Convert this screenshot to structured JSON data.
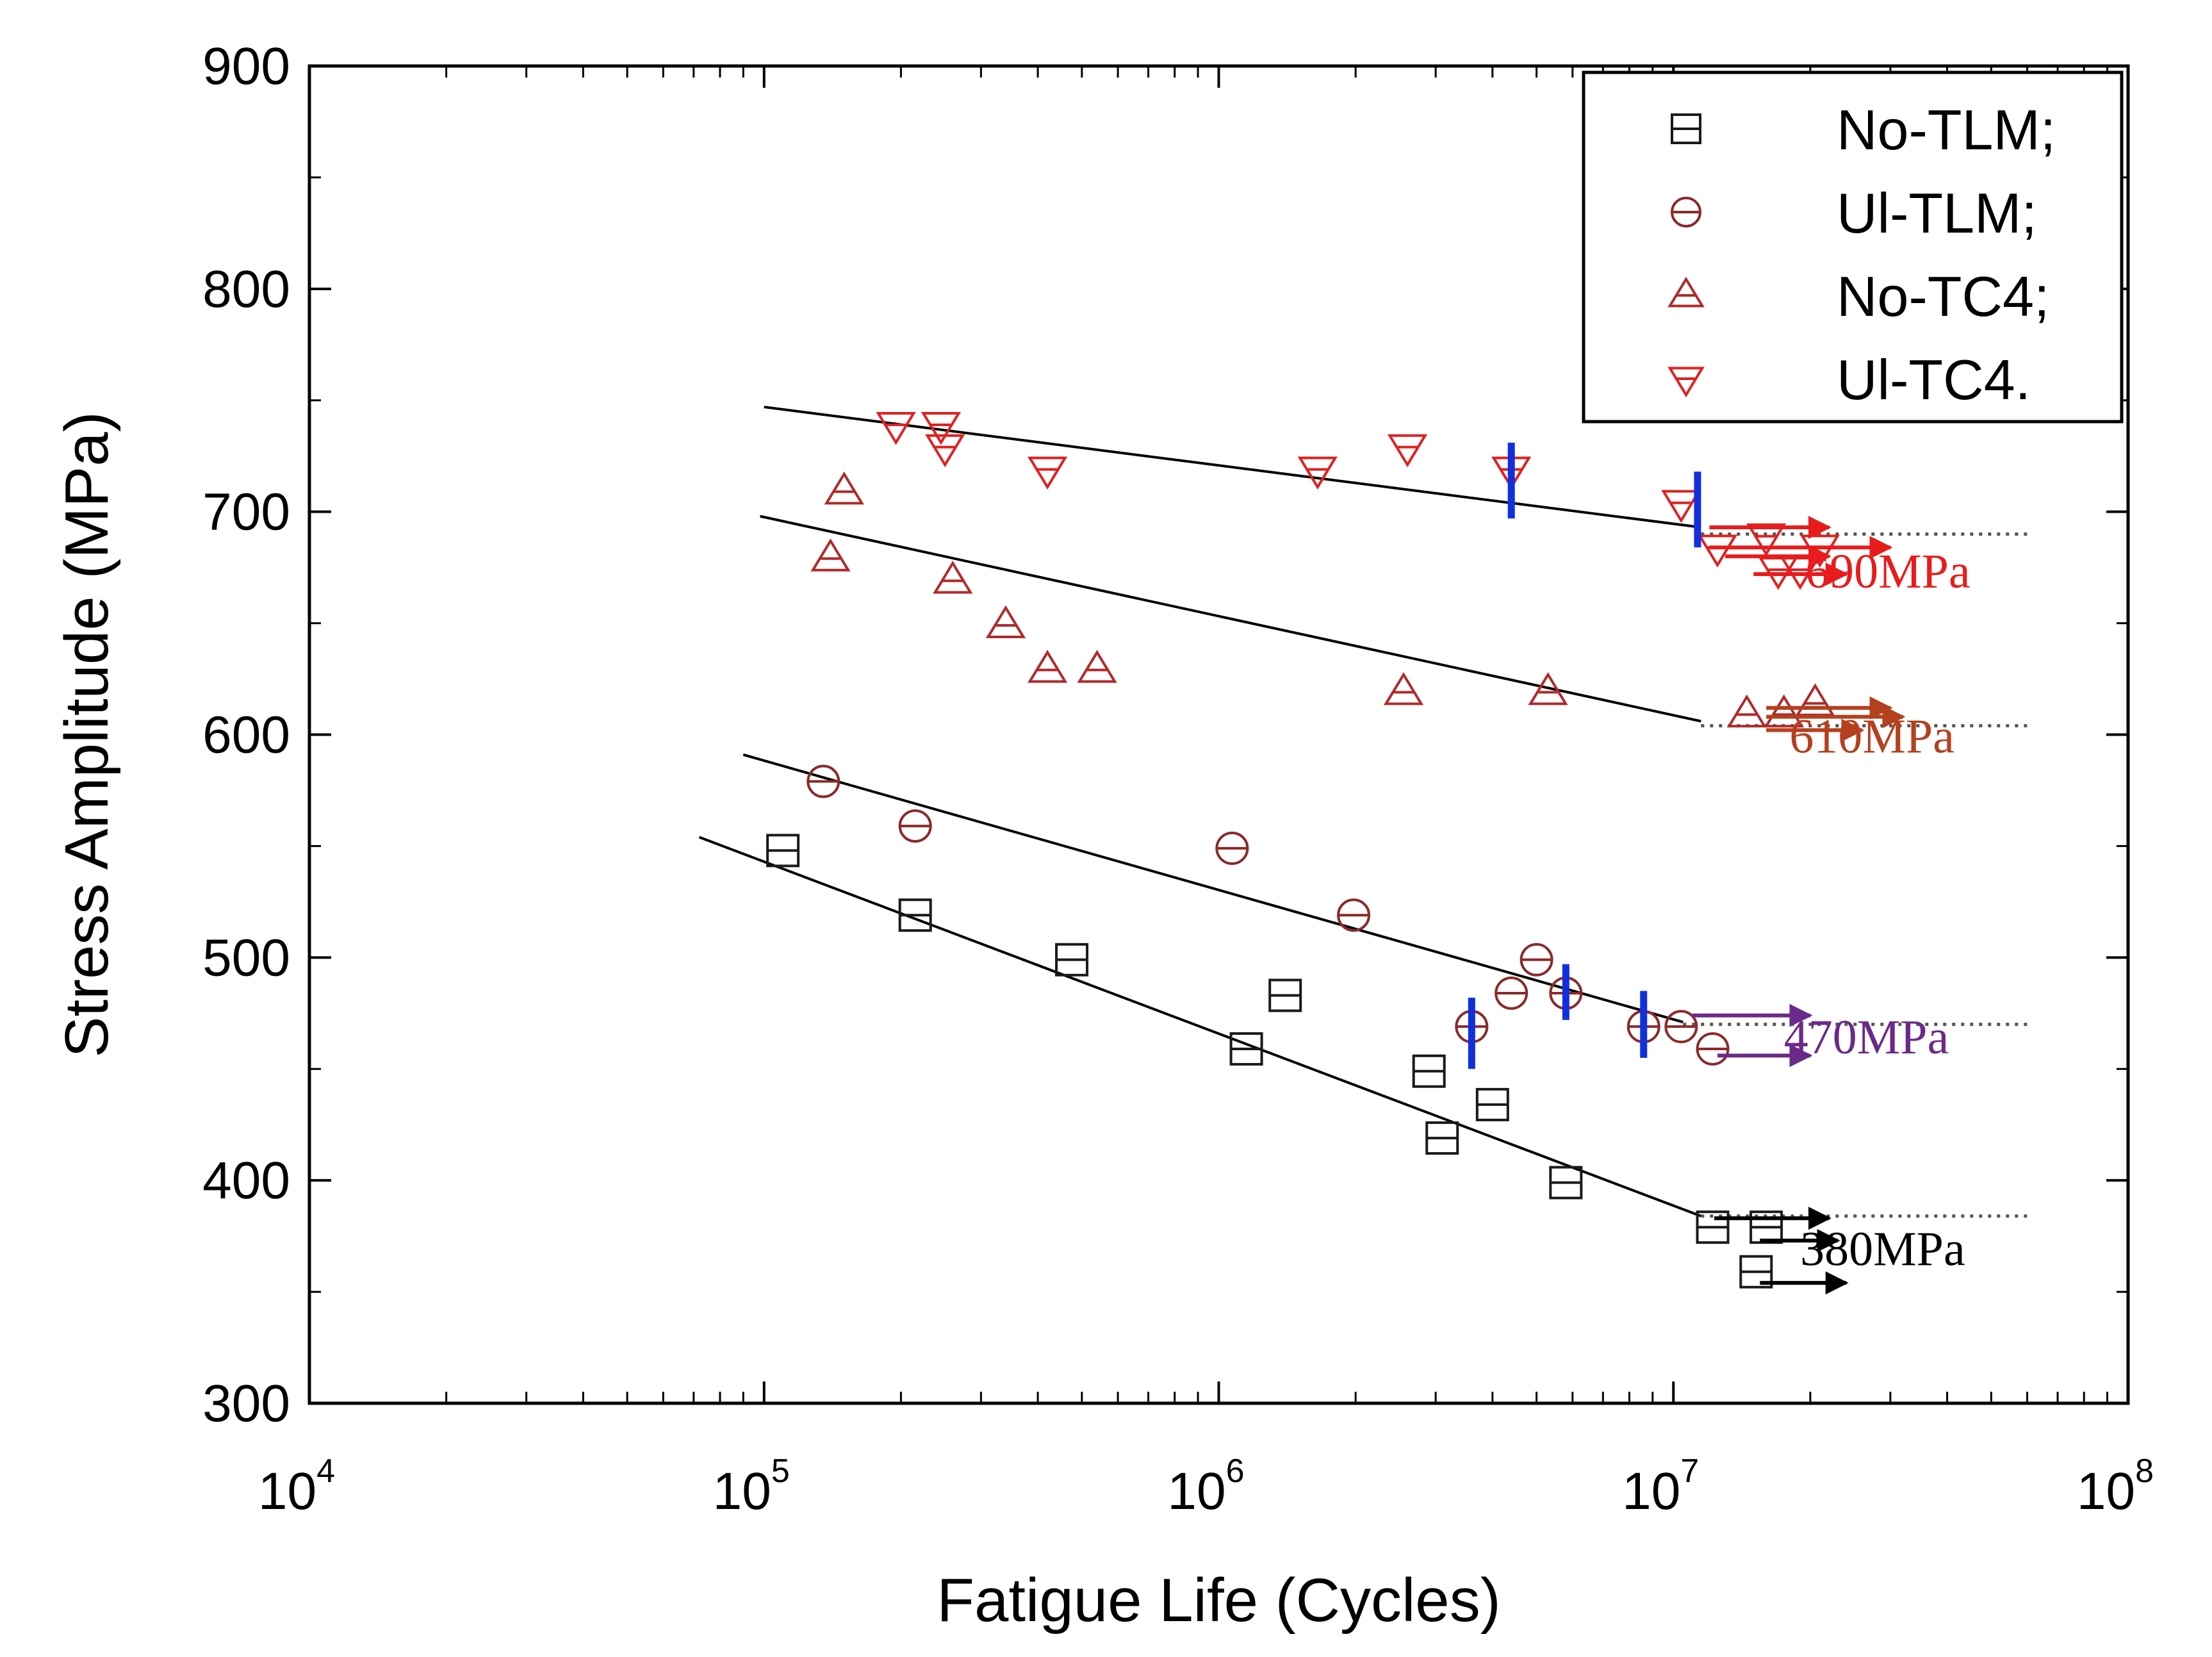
{
  "chart_data": {
    "type": "scatter",
    "title": "",
    "xlabel": "Fatigue Life (Cycles)",
    "ylabel": "Stress Amplitude (MPa)",
    "x_scale": "log",
    "xlim": [
      10000,
      100000000
    ],
    "ylim": [
      300,
      900
    ],
    "x_ticks": [
      {
        "value": 10000,
        "base": "10",
        "exp": "4"
      },
      {
        "value": 100000,
        "base": "10",
        "exp": "5"
      },
      {
        "value": 1000000,
        "base": "10",
        "exp": "6"
      },
      {
        "value": 10000000,
        "base": "10",
        "exp": "7"
      },
      {
        "value": 100000000,
        "base": "10",
        "exp": "8"
      }
    ],
    "y_ticks": [
      300,
      400,
      500,
      600,
      700,
      800,
      900
    ],
    "y_minor_step": 50,
    "legend_position": "top-right",
    "series": [
      {
        "name": "No-TLM;",
        "marker": "square",
        "color": "#1a1a1a",
        "x": [
          110000,
          215000,
          475000,
          1150000,
          1400000,
          2900000,
          3100000,
          4000000,
          5800000,
          12200000,
          16000000,
          15200000
        ],
        "y": [
          548,
          519,
          499,
          459,
          483,
          449,
          419,
          434,
          399,
          379,
          379,
          359
        ],
        "fit": {
          "x": [
            72000,
            11500000
          ],
          "y": [
            554,
            384
          ]
        },
        "runout_line": {
          "x": [
            11500000,
            60000000
          ],
          "y": 384
        },
        "runout_arrows": [
          {
            "x0": 12300000,
            "x1": 22000000,
            "y": 383
          },
          {
            "x0": 15500000,
            "x1": 23000000,
            "y": 373
          },
          {
            "x0": 15500000,
            "x1": 24000000,
            "y": 354
          }
        ],
        "runout_color": "#000000",
        "level_label": "380MPa",
        "level_label_x": 19000000,
        "level_label_y": 362,
        "failure_marks": [],
        "color_label": "#000000"
      },
      {
        "name": "Ul-TLM;",
        "marker": "circle",
        "color": "#8b2a2a",
        "x": [
          135000,
          215000,
          1070000,
          1980000,
          3600000,
          4400000,
          5000000,
          5800000,
          8600000,
          10400000,
          12200000
        ],
        "y": [
          579,
          559,
          549,
          519,
          469,
          484,
          499,
          484,
          469,
          469,
          459
        ],
        "fit": {
          "x": [
            90000,
            10500000
          ],
          "y": [
            591,
            471
          ]
        },
        "runout_line": {
          "x": [
            10500000,
            60000000
          ],
          "y": 470
        },
        "runout_arrows": [
          {
            "x0": 11000000,
            "x1": 20000000,
            "y": 474
          },
          {
            "x0": 12500000,
            "x1": 20000000,
            "y": 456
          }
        ],
        "runout_color": "#6b2a8a",
        "level_label": "470MPa",
        "level_label_x": 17500000,
        "level_label_y": 457,
        "failure_marks": [
          {
            "x": 3600000,
            "y0": 482,
            "y1": 450
          },
          {
            "x": 5800000,
            "y0": 497,
            "y1": 472
          },
          {
            "x": 8600000,
            "y0": 485,
            "y1": 455
          }
        ],
        "color_label": "#6b2a8a"
      },
      {
        "name": "No-TC4;",
        "marker": "triangle-up",
        "color": "#b02a2a",
        "x": [
          150000,
          140000,
          260000,
          340000,
          420000,
          540000,
          2550000,
          5300000,
          14500000,
          17500000,
          20500000
        ],
        "y": [
          709,
          679,
          669,
          649,
          629,
          629,
          619,
          619,
          609,
          609,
          614
        ],
        "fit": {
          "x": [
            98000,
            11500000
          ],
          "y": [
            698,
            606
          ]
        },
        "runout_line": {
          "x": [
            11500000,
            60000000
          ],
          "y": 604
        },
        "runout_arrows": [
          {
            "x0": 16000000,
            "x1": 30000000,
            "y": 612
          },
          {
            "x0": 16000000,
            "x1": 32000000,
            "y": 608
          },
          {
            "x0": 16000000,
            "x1": 26000000,
            "y": 602
          }
        ],
        "runout_color": "#b5401e",
        "level_label": "610MPa",
        "level_label_x": 18000000,
        "level_label_y": 592,
        "failure_marks": [],
        "color_label": "#b5401e"
      },
      {
        "name": "Ul-TC4.",
        "marker": "triangle-down",
        "color": "#e02020",
        "x": [
          195000,
          245000,
          250000,
          420000,
          1650000,
          2600000,
          4400000,
          10400000,
          12500000,
          16000000,
          17000000,
          19000000,
          21000000
        ],
        "y": [
          739,
          739,
          729,
          719,
          719,
          729,
          719,
          704,
          684,
          689,
          674,
          674,
          684
        ],
        "fit": {
          "x": [
            100000,
            11500000
          ],
          "y": [
            747,
            693
          ]
        },
        "runout_line": {
          "x": [
            11500000,
            60000000
          ],
          "y": 690
        },
        "runout_arrows": [
          {
            "x0": 12000000,
            "x1": 22000000,
            "y": 693
          },
          {
            "x0": 12000000,
            "x1": 30000000,
            "y": 684
          },
          {
            "x0": 13000000,
            "x1": 22000000,
            "y": 680
          },
          {
            "x0": 15000000,
            "x1": 24000000,
            "y": 672
          }
        ],
        "runout_color": "#e81c1c",
        "level_label": "690MPa",
        "level_label_x": 19500000,
        "level_label_y": 666,
        "failure_marks": [
          {
            "x": 4400000,
            "y0": 731,
            "y1": 697
          },
          {
            "x": 11300000,
            "y0": 718,
            "y1": 684
          }
        ],
        "color_label": "#e81c1c"
      }
    ]
  },
  "colors": {
    "axis": "#000000",
    "fit_line": "#000000",
    "failure_mark": "#1030e0",
    "dotted_line": "#555555"
  }
}
